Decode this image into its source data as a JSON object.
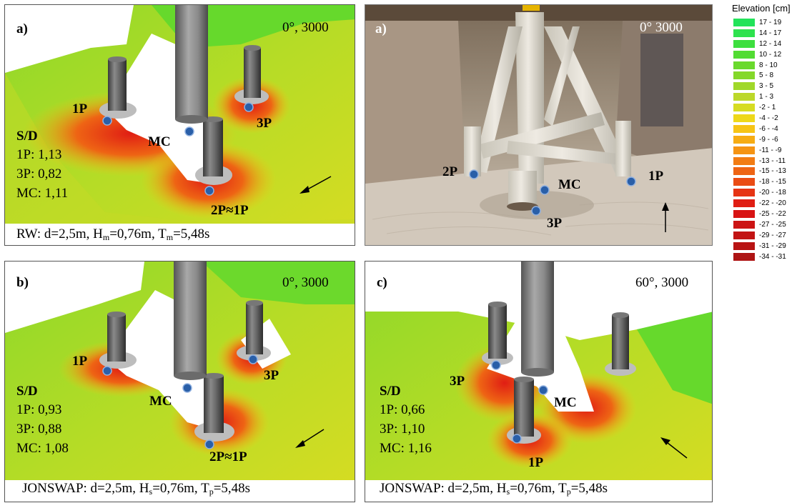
{
  "panels": {
    "a": {
      "label": "a)",
      "condition": "0°, 3000",
      "sd_title": "S/D",
      "sd": [
        "1P: 1,13",
        "3P: 0,82",
        "MC: 1,11"
      ],
      "pile_labels": [
        "1P",
        "MC",
        "3P",
        "2P≈1P"
      ],
      "wave_prefix": "RW: d=2,5m, H",
      "wave_h_sub": "m",
      "wave_mid": "=0,76m, T",
      "wave_t_sub": "m",
      "wave_end": "=5,48s"
    },
    "photo": {
      "label": "a)",
      "condition": "0° 3000",
      "pile_labels": [
        "2P",
        "MC",
        "1P",
        "3P"
      ]
    },
    "b": {
      "label": "b)",
      "condition": "0°, 3000",
      "sd_title": "S/D",
      "sd": [
        "1P: 0,93",
        "3P: 0,88",
        "MC: 1,08"
      ],
      "pile_labels": [
        "1P",
        "3P",
        "MC",
        "2P≈1P"
      ],
      "wave_prefix": "JONSWAP: d=2,5m, H",
      "wave_h_sub": "s",
      "wave_mid": "=0,76m, T",
      "wave_t_sub": "p",
      "wave_end": "=5,48s"
    },
    "c": {
      "label": "c)",
      "condition": "60°, 3000",
      "sd_title": "S/D",
      "sd": [
        "1P: 0,66",
        "3P: 1,10",
        "MC: 1,16"
      ],
      "pile_labels": [
        "3P",
        "MC",
        "1P"
      ],
      "wave_prefix": "JONSWAP: d=2,5m, H",
      "wave_h_sub": "s",
      "wave_mid": "=0,76m, T",
      "wave_t_sub": "p",
      "wave_end": "=5,48s"
    }
  },
  "legend": {
    "title": "Elevation [cm]",
    "items": [
      {
        "label": "17 - 19",
        "color": "#22e35a"
      },
      {
        "label": "14 - 17",
        "color": "#2ee24e"
      },
      {
        "label": "12 - 14",
        "color": "#3ddf3f"
      },
      {
        "label": "10 - 12",
        "color": "#52dc33"
      },
      {
        "label": "8 - 10",
        "color": "#6ad92d"
      },
      {
        "label": "5 - 8",
        "color": "#84d82a"
      },
      {
        "label": "3 - 5",
        "color": "#a0d82a"
      },
      {
        "label": "1 - 3",
        "color": "#bcd82a"
      },
      {
        "label": "-2 - 1",
        "color": "#d6dc22"
      },
      {
        "label": "-4 - -2",
        "color": "#eed81a"
      },
      {
        "label": "-6 - -4",
        "color": "#f6c416"
      },
      {
        "label": "-9 - -6",
        "color": "#f6ac14"
      },
      {
        "label": "-11 - -9",
        "color": "#f59414"
      },
      {
        "label": "-13 - -11",
        "color": "#f27c14"
      },
      {
        "label": "-15 - -13",
        "color": "#ee6414"
      },
      {
        "label": "-18 - -15",
        "color": "#ea4c14"
      },
      {
        "label": "-20 - -18",
        "color": "#e63414"
      },
      {
        "label": "-22 - -20",
        "color": "#e01e14"
      },
      {
        "label": "-25 - -22",
        "color": "#d81414"
      },
      {
        "label": "-27 - -25",
        "color": "#cc1414"
      },
      {
        "label": "-29 - -27",
        "color": "#c21414"
      },
      {
        "label": "-31 - -29",
        "color": "#b81414"
      },
      {
        "label": "-34 - -31",
        "color": "#ae1414"
      }
    ]
  }
}
